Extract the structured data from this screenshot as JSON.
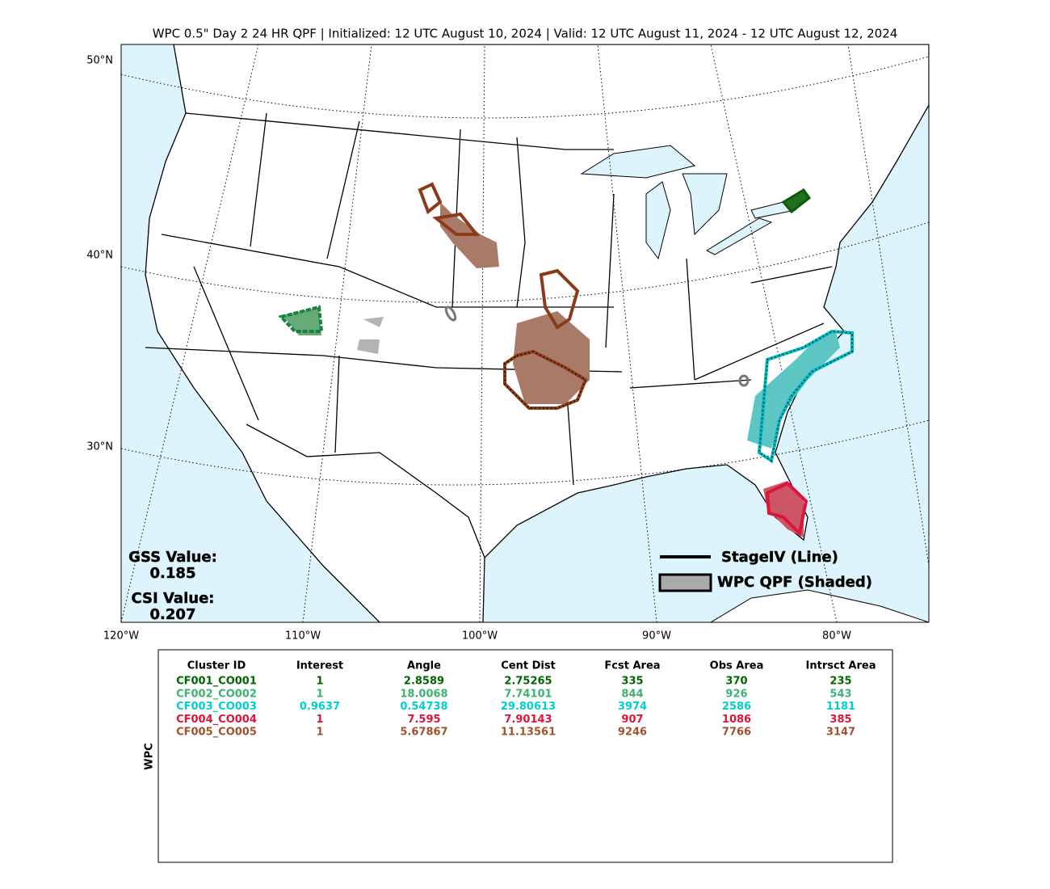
{
  "title": "WPC 0.5\" Day 2 24 HR QPF | Initialized: 12 UTC August 10, 2024 | Valid: 12 UTC August 11, 2024 - 12 UTC August 12, 2024",
  "map": {
    "lat_labels": [
      "50°N",
      "40°N",
      "30°N"
    ],
    "lon_labels": [
      "120°W",
      "110°W",
      "100°W",
      "90°W",
      "80°W"
    ],
    "scores": [
      {
        "label": "GSS Value:",
        "value": "0.185"
      },
      {
        "label": "CSI Value:",
        "value": "0.207"
      }
    ],
    "legend": [
      "StageIV (Line)",
      "WPC QPF (Shaded)"
    ]
  },
  "table": {
    "side_label": "WPC",
    "header": [
      "Cluster ID",
      "Interest",
      "Angle",
      "Cent Dist",
      "Fcst Area",
      "Obs Area",
      "Intrsct Area"
    ],
    "rows": [
      [
        "CF001_CO001",
        "1",
        "2.8589",
        "2.75265",
        "335",
        "370",
        "235"
      ],
      [
        "CF002_CO002",
        "1",
        "18.0068",
        "7.74101",
        "844",
        "926",
        "543"
      ],
      [
        "CF003_CO003",
        "0.9637",
        "0.54738",
        "29.80613",
        "3974",
        "2586",
        "1181"
      ],
      [
        "CF004_CO004",
        "1",
        "7.595",
        "7.90143",
        "907",
        "1086",
        "385"
      ],
      [
        "CF005_CO005",
        "1",
        "5.67867",
        "11.13561",
        "9246",
        "7766",
        "3147"
      ]
    ],
    "row_colors": [
      "#006400",
      "#3cb371",
      "#00ced1",
      "#dc143c",
      "#a0522d"
    ]
  }
}
